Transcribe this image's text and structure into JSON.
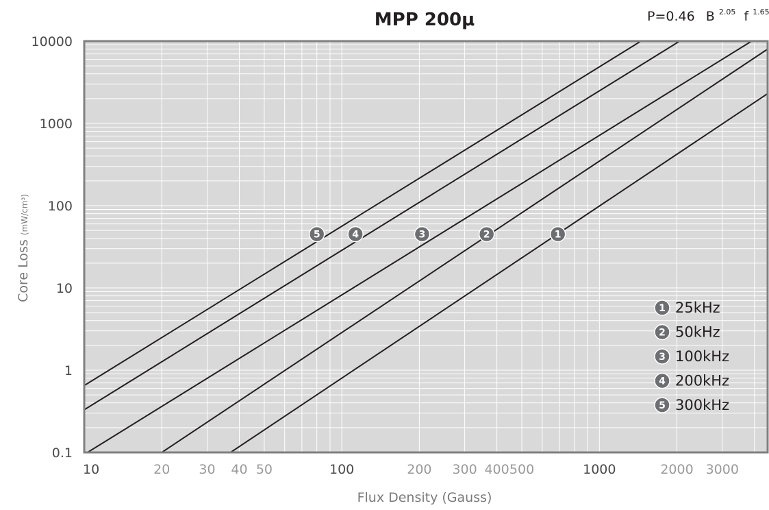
{
  "chart_data": {
    "type": "line",
    "title": "MPP 200μ",
    "formula": {
      "base": "P=0.46",
      "b_symbol": "B",
      "b_exp": "2.05",
      "f_symbol": "f",
      "f_exp": "1.65"
    },
    "xlabel": "Flux Density (Gauss)",
    "ylabel": {
      "main": "Core Loss ",
      "unit": "(mW/cm³)"
    },
    "x_scale": "log",
    "y_scale": "log",
    "xlim": [
      10,
      4500
    ],
    "ylim": [
      0.1,
      10000
    ],
    "x_ticks": [
      {
        "label": "10",
        "value": 10,
        "major": true
      },
      {
        "label": "20",
        "value": 20,
        "major": false
      },
      {
        "label": "30",
        "value": 30,
        "major": false
      },
      {
        "label": "40",
        "value": 40,
        "major": false
      },
      {
        "label": "50",
        "value": 50,
        "major": false
      },
      {
        "label": "100",
        "value": 100,
        "major": true
      },
      {
        "label": "200",
        "value": 200,
        "major": false
      },
      {
        "label": "300",
        "value": 300,
        "major": false
      },
      {
        "label": "400",
        "value": 400,
        "major": false
      },
      {
        "label": "500",
        "value": 500,
        "major": false
      },
      {
        "label": "1000",
        "value": 1000,
        "major": true
      },
      {
        "label": "2000",
        "value": 2000,
        "major": false
      },
      {
        "label": "3000",
        "value": 3000,
        "major": false
      }
    ],
    "y_ticks": [
      {
        "label": "0.1",
        "value": 0.1
      },
      {
        "label": "1",
        "value": 1
      },
      {
        "label": "10",
        "value": 10
      },
      {
        "label": "100",
        "value": 100
      },
      {
        "label": "1000",
        "value": 1000
      },
      {
        "label": "10000",
        "value": 10000
      }
    ],
    "grid": true,
    "legend_position": "bottom-right",
    "series": [
      {
        "marker": "1",
        "name": "25kHz",
        "points": [
          [
            37,
            0.1
          ],
          [
            4500,
            2300
          ]
        ],
        "marker_at": [
          690,
          45
        ]
      },
      {
        "marker": "2",
        "name": "50kHz",
        "points": [
          [
            20,
            0.1
          ],
          [
            4500,
            8000
          ]
        ],
        "marker_at": [
          365,
          45
        ]
      },
      {
        "marker": "3",
        "name": "100kHz",
        "points": [
          [
            10.3,
            0.1
          ],
          [
            3900,
            10000
          ]
        ],
        "marker_at": [
          205,
          45
        ]
      },
      {
        "marker": "4",
        "name": "200kHz",
        "points": [
          [
            10,
            0.33
          ],
          [
            2050,
            10000
          ]
        ],
        "marker_at": [
          113,
          45
        ]
      },
      {
        "marker": "5",
        "name": "300kHz",
        "points": [
          [
            10,
            0.65
          ],
          [
            1450,
            10000
          ]
        ],
        "marker_at": [
          80,
          45
        ]
      }
    ]
  },
  "colors": {
    "plot_bg": "#d9d9d9",
    "grid": "#ffffff",
    "frame": "#808080",
    "line": "#231f20",
    "marker_fill": "#6d6e71",
    "tick_major": "#4a4a4a",
    "tick_minor": "#9a9a9a",
    "axis_label": "#7a7a7a"
  }
}
